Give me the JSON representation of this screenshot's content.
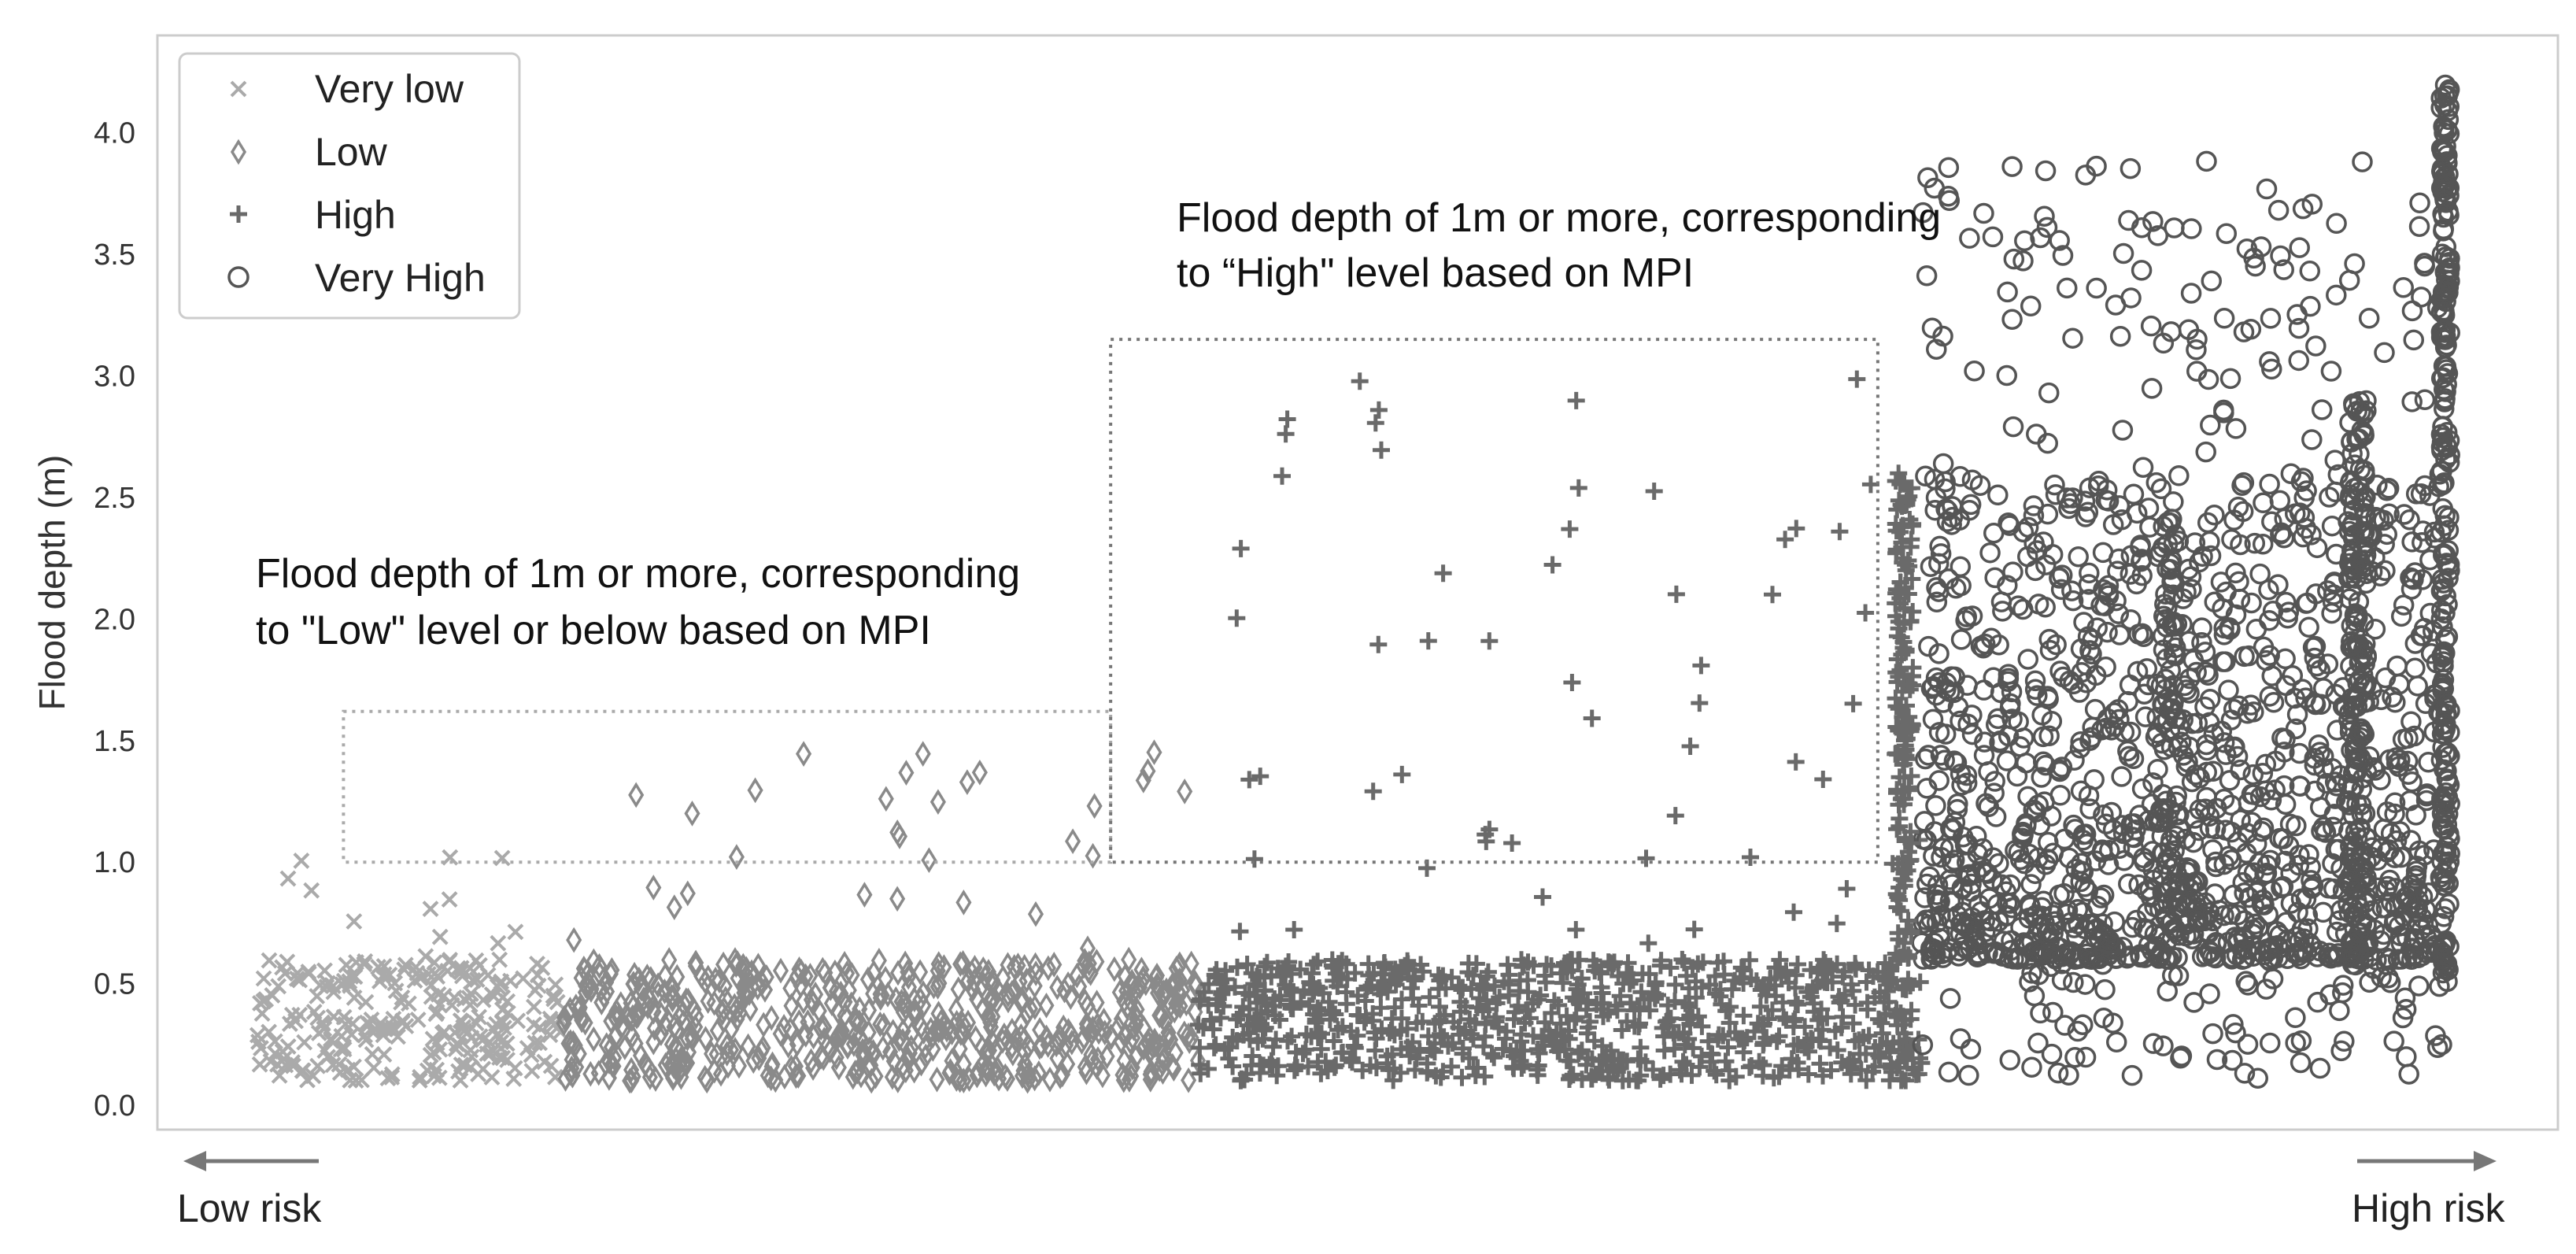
{
  "chart_data": {
    "type": "scatter",
    "ylabel": "Flood depth (m)",
    "xlabel": "",
    "ylim": [
      -0.1,
      4.4
    ],
    "yticks": [
      "0.0",
      "0.5",
      "1.0",
      "1.5",
      "2.0",
      "2.5",
      "3.0",
      "3.5",
      "4.0"
    ],
    "grid": false,
    "legend_placement": "top-left",
    "x_axis_ends": {
      "low": "Low risk",
      "high": "High risk"
    },
    "series": [
      {
        "name": "Very low",
        "marker": "x",
        "color": "#aaaaaa",
        "x_range": [
          0.0,
          0.14
        ],
        "dense_band": [
          0.1,
          0.6
        ]
      },
      {
        "name": "Low",
        "marker": "diamond",
        "color": "#8a8a8a",
        "x_range": [
          0.14,
          0.43
        ],
        "dense_band": [
          0.1,
          0.6
        ]
      },
      {
        "name": "High",
        "marker": "plus",
        "color": "#6a6a6a",
        "x_range": [
          0.43,
          0.76
        ],
        "dense_band": [
          0.1,
          0.6
        ]
      },
      {
        "name": "Very High",
        "marker": "circle",
        "color": "#555555",
        "x_range": [
          0.76,
          1.0
        ],
        "dense_band": [
          0.6,
          2.6
        ]
      }
    ],
    "annotations": [
      {
        "id": "low_box",
        "text_lines": [
          "Flood depth of 1m or more, corresponding",
          "to \"Low\" level or below based on MPI"
        ],
        "box_x": [
          0.04,
          0.39
        ],
        "box_y": [
          1.0,
          1.62
        ],
        "color": "#aaaaaa"
      },
      {
        "id": "high_box",
        "text_lines": [
          "Flood depth of 1m or more, corresponding",
          "to “High\" level based on MPI"
        ],
        "box_x": [
          0.39,
          0.74
        ],
        "box_y": [
          1.0,
          3.15
        ],
        "color": "#777777"
      }
    ]
  }
}
